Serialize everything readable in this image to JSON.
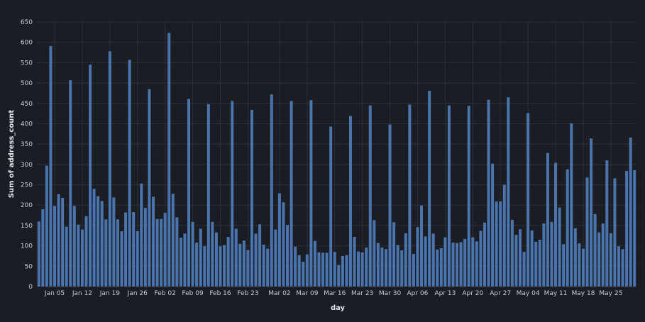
{
  "chart_data": {
    "type": "bar",
    "xlabel": "day",
    "ylabel": "Sum of address_count",
    "ylim": [
      0,
      650
    ],
    "yticks": [
      0,
      50,
      100,
      150,
      200,
      250,
      300,
      350,
      400,
      450,
      500,
      550,
      600,
      650
    ],
    "grid": true,
    "bar_color": "#4a74ad",
    "x_start": "2024-01-01",
    "tick_labels": [
      {
        "label": "Jan 05",
        "index": 4
      },
      {
        "label": "Jan 12",
        "index": 11
      },
      {
        "label": "Jan 19",
        "index": 18
      },
      {
        "label": "Jan 26",
        "index": 25
      },
      {
        "label": "Feb 02",
        "index": 32
      },
      {
        "label": "Feb 09",
        "index": 39
      },
      {
        "label": "Feb 16",
        "index": 46
      },
      {
        "label": "Feb 23",
        "index": 53
      },
      {
        "label": "Mar 02",
        "index": 61
      },
      {
        "label": "Mar 09",
        "index": 68
      },
      {
        "label": "Mar 16",
        "index": 75
      },
      {
        "label": "Mar 23",
        "index": 82
      },
      {
        "label": "Mar 30",
        "index": 89
      },
      {
        "label": "Apr 06",
        "index": 96
      },
      {
        "label": "Apr 13",
        "index": 103
      },
      {
        "label": "Apr 20",
        "index": 110
      },
      {
        "label": "Apr 27",
        "index": 117
      },
      {
        "label": "May 04",
        "index": 124
      },
      {
        "label": "May 11",
        "index": 131
      },
      {
        "label": "May 18",
        "index": 138
      },
      {
        "label": "May 25",
        "index": 145
      }
    ],
    "values": [
      160,
      190,
      297,
      591,
      198,
      227,
      218,
      147,
      507,
      198,
      152,
      140,
      173,
      545,
      240,
      222,
      210,
      165,
      578,
      219,
      165,
      136,
      182,
      557,
      183,
      136,
      253,
      193,
      485,
      221,
      166,
      166,
      181,
      623,
      228,
      170,
      120,
      130,
      461,
      159,
      108,
      142,
      99,
      448,
      159,
      133,
      99,
      102,
      122,
      456,
      142,
      105,
      113,
      90,
      434,
      130,
      153,
      103,
      93,
      472,
      140,
      229,
      207,
      151,
      456,
      98,
      77,
      61,
      79,
      458,
      112,
      84,
      83,
      83,
      393,
      85,
      53,
      75,
      77,
      419,
      122,
      86,
      84,
      96,
      445,
      163,
      107,
      96,
      92,
      398,
      158,
      102,
      89,
      131,
      447,
      80,
      146,
      199,
      123,
      481,
      130,
      91,
      94,
      121,
      445,
      108,
      107,
      109,
      117,
      444,
      121,
      111,
      137,
      157,
      459,
      302,
      209,
      209,
      250,
      465,
      164,
      127,
      141,
      85,
      426,
      138,
      110,
      115,
      155,
      328,
      159,
      304,
      194,
      104,
      288,
      401,
      143,
      106,
      93,
      268,
      364,
      178,
      133,
      155,
      310,
      131,
      266,
      99,
      92,
      284,
      366,
      286
    ]
  }
}
